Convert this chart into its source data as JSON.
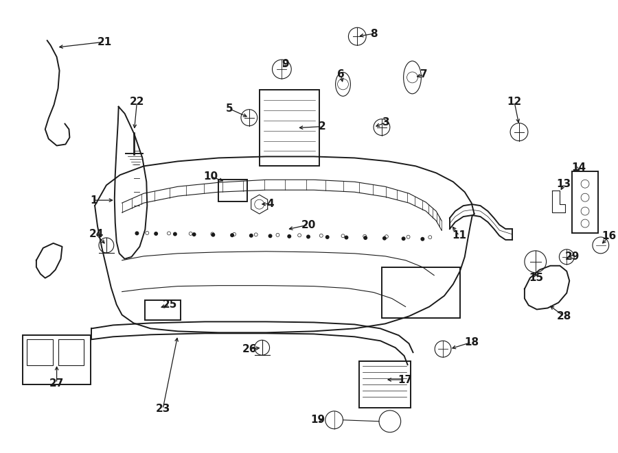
{
  "bg_color": "#ffffff",
  "line_color": "#1a1a1a",
  "fig_width": 9.0,
  "fig_height": 6.61,
  "dpi": 100,
  "lw_main": 1.4,
  "lw_thin": 0.8,
  "lw_thick": 2.0,
  "label_fontsize": 11,
  "arrow_lw": 0.9
}
